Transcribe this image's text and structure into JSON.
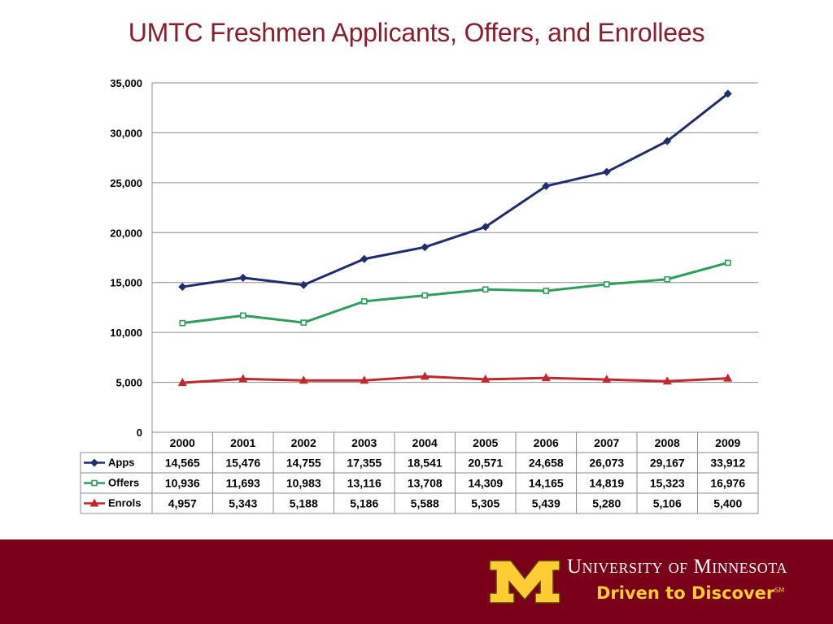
{
  "slide": {
    "title": "UMTC Freshmen Applicants, Offers, and Enrollees"
  },
  "footer": {
    "university_name": "University of Minnesota",
    "tagline": "Driven to Discover",
    "tagline_mark": "SM",
    "background": "#7a0019",
    "logo_color": "#ffcc33"
  },
  "chart_data": {
    "type": "line",
    "title": "",
    "xlabel": "",
    "ylabel": "",
    "ylim": [
      0,
      35000
    ],
    "yticks": [
      0,
      5000,
      10000,
      15000,
      20000,
      25000,
      30000,
      35000
    ],
    "ytick_labels": [
      "0",
      "5,000",
      "10,000",
      "15,000",
      "20,000",
      "25,000",
      "30,000",
      "35,000"
    ],
    "grid": true,
    "legend": "data-table",
    "categories": [
      "2000",
      "2001",
      "2002",
      "2003",
      "2004",
      "2005",
      "2006",
      "2007",
      "2008",
      "2009"
    ],
    "series": [
      {
        "name": "Apps",
        "color": "#1f2d6e",
        "marker": "diamond",
        "values": [
          14565,
          15476,
          14755,
          17355,
          18541,
          20571,
          24658,
          26073,
          29167,
          33912
        ],
        "labels": [
          "14,565",
          "15,476",
          "14,755",
          "17,355",
          "18,541",
          "20,571",
          "24,658",
          "26,073",
          "29,167",
          "33,912"
        ]
      },
      {
        "name": "Offers",
        "color": "#2e9e5b",
        "marker": "square",
        "values": [
          10936,
          11693,
          10983,
          13116,
          13708,
          14309,
          14165,
          14819,
          15323,
          16976
        ],
        "labels": [
          "10,936",
          "11,693",
          "10,983",
          "13,116",
          "13,708",
          "14,309",
          "14,165",
          "14,819",
          "15,323",
          "16,976"
        ]
      },
      {
        "name": "Enrols",
        "color": "#c0282d",
        "marker": "triangle",
        "values": [
          4957,
          5343,
          5188,
          5186,
          5588,
          5305,
          5439,
          5280,
          5106,
          5400
        ],
        "labels": [
          "4,957",
          "5,343",
          "5,188",
          "5,186",
          "5,588",
          "5,305",
          "5,439",
          "5,280",
          "5,106",
          "5,400"
        ]
      }
    ]
  }
}
